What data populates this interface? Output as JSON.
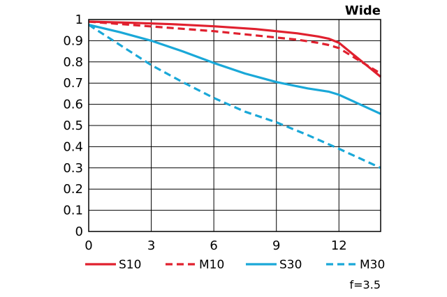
{
  "chart_data": {
    "type": "line",
    "title": "Wide",
    "xlabel": "",
    "ylabel": "",
    "xlim": [
      0,
      14
    ],
    "ylim": [
      0,
      1
    ],
    "grid": true,
    "x_ticks": [
      0,
      3,
      6,
      9,
      12
    ],
    "x_tick_labels": [
      "0",
      "3",
      "6",
      "9",
      "12"
    ],
    "y_ticks": [
      0,
      0.1,
      0.2,
      0.3,
      0.4,
      0.5,
      0.6,
      0.7,
      0.8,
      0.9,
      1
    ],
    "y_tick_labels": [
      "0",
      "0.1",
      "0.2",
      "0.3",
      "0.4",
      "0.5",
      "0.6",
      "0.7",
      "0.8",
      "0.9",
      "1"
    ],
    "legend_position": "bottom",
    "series": [
      {
        "name": "S10",
        "color": "#e0202e",
        "style": "solid",
        "x": [
          0,
          2,
          4,
          6,
          8,
          10,
          11,
          11.5,
          12,
          12.5,
          13,
          13.5,
          14
        ],
        "y": [
          0.99,
          0.985,
          0.978,
          0.968,
          0.955,
          0.935,
          0.92,
          0.91,
          0.89,
          0.85,
          0.81,
          0.77,
          0.73
        ]
      },
      {
        "name": "M10",
        "color": "#e0202e",
        "style": "dashed",
        "x": [
          0,
          2,
          4,
          6,
          8,
          10,
          11,
          11.5,
          12,
          12.5,
          13,
          13.5,
          14
        ],
        "y": [
          0.99,
          0.975,
          0.96,
          0.945,
          0.925,
          0.905,
          0.89,
          0.88,
          0.865,
          0.835,
          0.805,
          0.775,
          0.745
        ]
      },
      {
        "name": "S30",
        "color": "#1aa8d8",
        "style": "solid",
        "x": [
          0,
          1.5,
          3,
          4.5,
          6,
          7.5,
          9,
          10.5,
          11.5,
          12,
          13,
          14
        ],
        "y": [
          0.975,
          0.94,
          0.9,
          0.85,
          0.795,
          0.745,
          0.705,
          0.675,
          0.66,
          0.645,
          0.6,
          0.555
        ]
      },
      {
        "name": "M30",
        "color": "#1aa8d8",
        "style": "dashed",
        "x": [
          0,
          1.5,
          3,
          4.5,
          6,
          7.5,
          9,
          10.5,
          12,
          13,
          14
        ],
        "y": [
          0.975,
          0.88,
          0.785,
          0.705,
          0.63,
          0.565,
          0.515,
          0.455,
          0.39,
          0.345,
          0.3
        ]
      }
    ],
    "annotation": "f=3.5"
  }
}
